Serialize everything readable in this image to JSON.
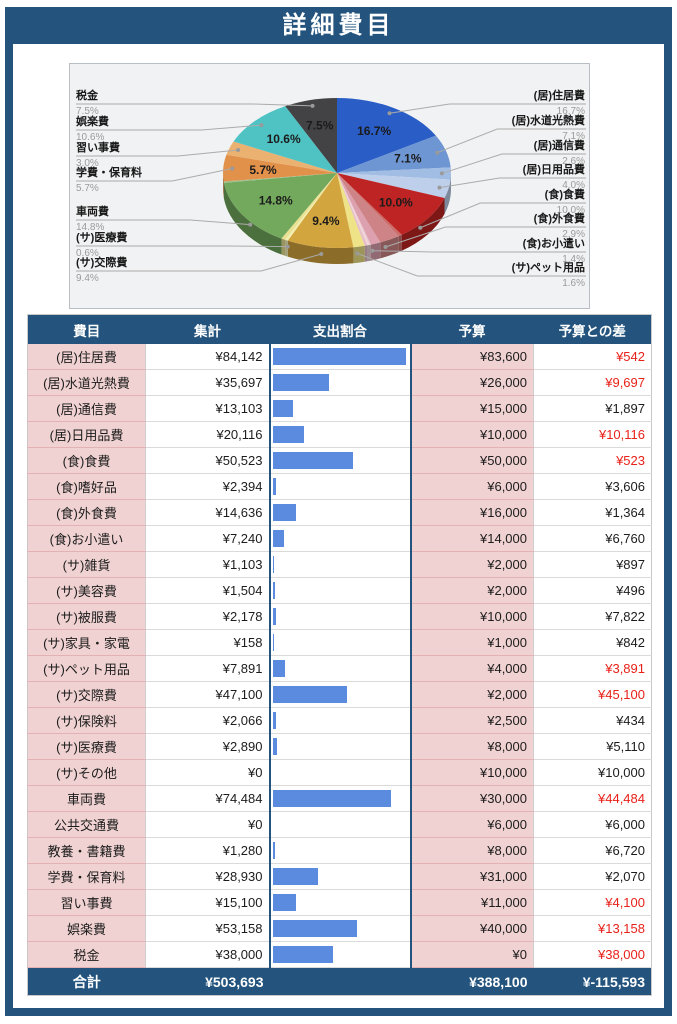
{
  "title": "詳細費目",
  "colors": {
    "navy": "#24547E",
    "pink_cell": "#F0D2D2",
    "bar_blue": "#5B8BDF",
    "over_budget_red": "#E8211A",
    "footer_value_pink": "#F0C3CB",
    "panel_bg": "#F1F2F3"
  },
  "chart_data": {
    "type": "pie",
    "style": "3d",
    "start_angle": "top",
    "direction": "clockwise",
    "slices": [
      {
        "label": "(居)住居費",
        "pct": 16.7,
        "color": "#2A5EC6",
        "callout": "right",
        "inside": true
      },
      {
        "label": "(居)水道光熱費",
        "pct": 7.1,
        "color": "#6E96D2",
        "callout": "right",
        "inside": true
      },
      {
        "label": "(居)通信費",
        "pct": 2.6,
        "color": "#A2BDE3",
        "callout": "right",
        "inside": false
      },
      {
        "label": "(居)日用品費",
        "pct": 4.0,
        "color": "#BDCFEA",
        "callout": "right",
        "inside": false
      },
      {
        "label": "(食)食費",
        "pct": 10.0,
        "color": "#BE2423",
        "callout": "right",
        "inside": true
      },
      {
        "label": "(食)嗜好品",
        "pct": 0.5,
        "color": "#CB6E6B",
        "callout": "none",
        "inside": false
      },
      {
        "label": "(食)外食費",
        "pct": 2.9,
        "color": "#CE8486",
        "callout": "right",
        "inside": false
      },
      {
        "label": "(食)お小遣い",
        "pct": 1.4,
        "color": "#DCA0AE",
        "callout": "right",
        "inside": false
      },
      {
        "label": "(サ)雑貨",
        "pct": 0.2,
        "color": "#ECC8D0",
        "callout": "none",
        "inside": false
      },
      {
        "label": "(サ)美容費",
        "pct": 0.3,
        "color": "#F0D5DA",
        "callout": "none",
        "inside": false
      },
      {
        "label": "(サ)被服費",
        "pct": 0.4,
        "color": "#E6BFC8",
        "callout": "none",
        "inside": false
      },
      {
        "label": "(サ)家具・家電",
        "pct": 0.0,
        "color": "#F5E6E9",
        "callout": "none",
        "inside": false
      },
      {
        "label": "(サ)ペット用品",
        "pct": 1.6,
        "color": "#EFE387",
        "callout": "right",
        "inside": false
      },
      {
        "label": "(サ)交際費",
        "pct": 9.4,
        "color": "#D2A53E",
        "callout": "left",
        "inside": true
      },
      {
        "label": "(サ)保険料",
        "pct": 0.4,
        "color": "#F3EFB0",
        "callout": "none",
        "inside": false
      },
      {
        "label": "(サ)医療費",
        "pct": 0.6,
        "color": "#E9E192",
        "callout": "left",
        "inside": false
      },
      {
        "label": "(サ)その他",
        "pct": 0.0,
        "color": "#FFFFFF",
        "callout": "none",
        "inside": false
      },
      {
        "label": "車両費",
        "pct": 14.8,
        "color": "#73A95D",
        "callout": "left",
        "inside": true
      },
      {
        "label": "公共交通費",
        "pct": 0.0,
        "color": "#FFFFFF",
        "callout": "none",
        "inside": false
      },
      {
        "label": "教養・書籍費",
        "pct": 0.3,
        "color": "#9FC08C",
        "callout": "none",
        "inside": false
      },
      {
        "label": "学費・保育料",
        "pct": 5.7,
        "color": "#E2914A",
        "callout": "left",
        "inside": true
      },
      {
        "label": "習い事費",
        "pct": 3.0,
        "color": "#EBB170",
        "callout": "left",
        "inside": false
      },
      {
        "label": "娯楽費",
        "pct": 10.6,
        "color": "#4FC2C3",
        "callout": "left",
        "inside": true
      },
      {
        "label": "税金",
        "pct": 7.5,
        "color": "#434345",
        "callout": "left",
        "inside": true
      }
    ]
  },
  "table": {
    "columns": [
      "費目",
      "集計",
      "支出割合",
      "予算",
      "予算との差"
    ],
    "bar_max_value": 84142,
    "rows": [
      {
        "item": "(居)住居費",
        "total": "¥84,142",
        "total_value": 84142,
        "budget": "¥83,600",
        "diff": "¥542",
        "over": true
      },
      {
        "item": "(居)水道光熱費",
        "total": "¥35,697",
        "total_value": 35697,
        "budget": "¥26,000",
        "diff": "¥9,697",
        "over": true
      },
      {
        "item": "(居)通信費",
        "total": "¥13,103",
        "total_value": 13103,
        "budget": "¥15,000",
        "diff": "¥1,897",
        "over": false
      },
      {
        "item": "(居)日用品費",
        "total": "¥20,116",
        "total_value": 20116,
        "budget": "¥10,000",
        "diff": "¥10,116",
        "over": true
      },
      {
        "item": "(食)食費",
        "total": "¥50,523",
        "total_value": 50523,
        "budget": "¥50,000",
        "diff": "¥523",
        "over": true
      },
      {
        "item": "(食)嗜好品",
        "total": "¥2,394",
        "total_value": 2394,
        "budget": "¥6,000",
        "diff": "¥3,606",
        "over": false
      },
      {
        "item": "(食)外食費",
        "total": "¥14,636",
        "total_value": 14636,
        "budget": "¥16,000",
        "diff": "¥1,364",
        "over": false
      },
      {
        "item": "(食)お小遣い",
        "total": "¥7,240",
        "total_value": 7240,
        "budget": "¥14,000",
        "diff": "¥6,760",
        "over": false
      },
      {
        "item": "(サ)雑貨",
        "total": "¥1,103",
        "total_value": 1103,
        "budget": "¥2,000",
        "diff": "¥897",
        "over": false
      },
      {
        "item": "(サ)美容費",
        "total": "¥1,504",
        "total_value": 1504,
        "budget": "¥2,000",
        "diff": "¥496",
        "over": false
      },
      {
        "item": "(サ)被服費",
        "total": "¥2,178",
        "total_value": 2178,
        "budget": "¥10,000",
        "diff": "¥7,822",
        "over": false
      },
      {
        "item": "(サ)家具・家電",
        "total": "¥158",
        "total_value": 158,
        "budget": "¥1,000",
        "diff": "¥842",
        "over": false
      },
      {
        "item": "(サ)ペット用品",
        "total": "¥7,891",
        "total_value": 7891,
        "budget": "¥4,000",
        "diff": "¥3,891",
        "over": true
      },
      {
        "item": "(サ)交際費",
        "total": "¥47,100",
        "total_value": 47100,
        "budget": "¥2,000",
        "diff": "¥45,100",
        "over": true
      },
      {
        "item": "(サ)保険料",
        "total": "¥2,066",
        "total_value": 2066,
        "budget": "¥2,500",
        "diff": "¥434",
        "over": false
      },
      {
        "item": "(サ)医療費",
        "total": "¥2,890",
        "total_value": 2890,
        "budget": "¥8,000",
        "diff": "¥5,110",
        "over": false
      },
      {
        "item": "(サ)その他",
        "total": "¥0",
        "total_value": 0,
        "budget": "¥10,000",
        "diff": "¥10,000",
        "over": false
      },
      {
        "item": "車両費",
        "total": "¥74,484",
        "total_value": 74484,
        "budget": "¥30,000",
        "diff": "¥44,484",
        "over": true
      },
      {
        "item": "公共交通費",
        "total": "¥0",
        "total_value": 0,
        "budget": "¥6,000",
        "diff": "¥6,000",
        "over": false
      },
      {
        "item": "教養・書籍費",
        "total": "¥1,280",
        "total_value": 1280,
        "budget": "¥8,000",
        "diff": "¥6,720",
        "over": false
      },
      {
        "item": "学費・保育料",
        "total": "¥28,930",
        "total_value": 28930,
        "budget": "¥31,000",
        "diff": "¥2,070",
        "over": false
      },
      {
        "item": "習い事費",
        "total": "¥15,100",
        "total_value": 15100,
        "budget": "¥11,000",
        "diff": "¥4,100",
        "over": true
      },
      {
        "item": "娯楽費",
        "total": "¥53,158",
        "total_value": 53158,
        "budget": "¥40,000",
        "diff": "¥13,158",
        "over": true
      },
      {
        "item": "税金",
        "total": "¥38,000",
        "total_value": 38000,
        "budget": "¥0",
        "diff": "¥38,000",
        "over": true
      }
    ],
    "footer": {
      "item": "合計",
      "total": "¥503,693",
      "budget": "¥388,100",
      "diff": "¥-115,593"
    }
  }
}
